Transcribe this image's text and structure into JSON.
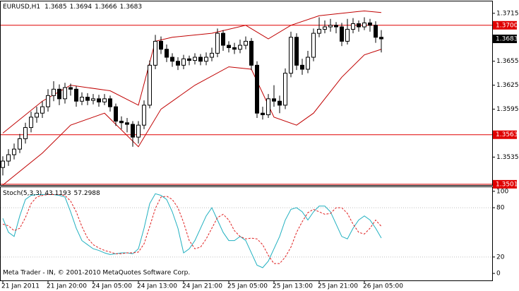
{
  "chart_data": [
    {
      "type": "candlestick",
      "title": "EURUSD,H1",
      "categories": [
        "21 Jan 2011",
        null,
        null,
        null,
        null,
        null,
        null,
        null,
        "21 Jan 20:00",
        null,
        null,
        null,
        null,
        null,
        null,
        null,
        "24 Jan 05:00",
        null,
        null,
        null,
        null,
        null,
        null,
        null,
        "24 Jan 13:00",
        null,
        null,
        null,
        null,
        null,
        null,
        null,
        "24 Jan 21:00",
        null,
        null,
        null,
        null,
        null,
        null,
        null,
        "25 Jan 05:00",
        null,
        null,
        null,
        null,
        null,
        null,
        null,
        "25 Jan 13:00",
        null,
        null,
        null,
        null,
        null,
        null,
        null,
        "25 Jan 21:00",
        null,
        null,
        null,
        null,
        null,
        null,
        null,
        "26 Jan 05:00",
        null,
        null,
        null
      ],
      "open": [
        1.3522,
        1.353,
        1.3538,
        1.3545,
        1.3558,
        1.3572,
        1.3585,
        1.359,
        1.3598,
        1.3612,
        1.362,
        1.3608,
        1.3622,
        1.362,
        1.3605,
        1.361,
        1.3606,
        1.3608,
        1.3604,
        1.3608,
        1.3598,
        1.358,
        1.3578,
        1.3576,
        1.356,
        1.3575,
        1.36,
        1.365,
        1.368,
        1.367,
        1.366,
        1.3655,
        1.365,
        1.3658,
        1.3656,
        1.366,
        1.3655,
        1.366,
        1.3665,
        1.369,
        1.3675,
        1.3672,
        1.367,
        1.3675,
        1.368,
        1.365,
        1.359,
        1.3588,
        1.3608,
        1.3605,
        1.36,
        1.364,
        1.3685,
        1.365,
        1.3645,
        1.366,
        1.369,
        1.3695,
        1.3698,
        1.37,
        1.3698,
        1.368,
        1.3695,
        1.3702,
        1.3698,
        1.3703,
        1.37,
        1.3685
      ],
      "high": [
        1.3536,
        1.3545,
        1.3552,
        1.3564,
        1.3578,
        1.3592,
        1.3598,
        1.3605,
        1.362,
        1.363,
        1.3626,
        1.3628,
        1.3627,
        1.3624,
        1.3616,
        1.3615,
        1.3614,
        1.3613,
        1.3614,
        1.3612,
        1.3602,
        1.3586,
        1.3584,
        1.358,
        1.358,
        1.3606,
        1.3656,
        1.3688,
        1.3686,
        1.3676,
        1.3665,
        1.366,
        1.3663,
        1.3662,
        1.3665,
        1.3664,
        1.3666,
        1.3672,
        1.3696,
        1.3694,
        1.368,
        1.3678,
        1.3682,
        1.3686,
        1.3684,
        1.3655,
        1.3598,
        1.3614,
        1.3625,
        1.3612,
        1.3646,
        1.3692,
        1.369,
        1.3658,
        1.3668,
        1.3696,
        1.371,
        1.3706,
        1.3708,
        1.3704,
        1.3703,
        1.3708,
        1.3709,
        1.3706,
        1.371,
        1.3708,
        1.3705,
        1.3694
      ],
      "low": [
        1.3512,
        1.3524,
        1.3532,
        1.354,
        1.3552,
        1.3566,
        1.3578,
        1.3584,
        1.3592,
        1.3605,
        1.36,
        1.3602,
        1.3612,
        1.3598,
        1.36,
        1.36,
        1.3601,
        1.3598,
        1.36,
        1.3592,
        1.3574,
        1.357,
        1.3566,
        1.3548,
        1.3552,
        1.357,
        1.3596,
        1.3645,
        1.3664,
        1.3654,
        1.3648,
        1.3644,
        1.3645,
        1.365,
        1.3651,
        1.365,
        1.365,
        1.3655,
        1.366,
        1.3668,
        1.3666,
        1.3664,
        1.3665,
        1.367,
        1.3644,
        1.3584,
        1.3582,
        1.3584,
        1.3598,
        1.359,
        1.3595,
        1.3635,
        1.3644,
        1.3638,
        1.364,
        1.3655,
        1.3685,
        1.369,
        1.3692,
        1.369,
        1.3674,
        1.3676,
        1.369,
        1.3692,
        1.3694,
        1.3692,
        1.3678,
        1.3666
      ],
      "close": [
        1.353,
        1.3538,
        1.3545,
        1.3558,
        1.3572,
        1.3585,
        1.359,
        1.3598,
        1.3612,
        1.362,
        1.3608,
        1.3622,
        1.362,
        1.3605,
        1.361,
        1.3606,
        1.3608,
        1.3604,
        1.3608,
        1.3598,
        1.358,
        1.3578,
        1.3576,
        1.356,
        1.3575,
        1.36,
        1.365,
        1.368,
        1.367,
        1.366,
        1.3655,
        1.365,
        1.3658,
        1.3656,
        1.366,
        1.3655,
        1.366,
        1.3665,
        1.369,
        1.3675,
        1.3672,
        1.367,
        1.3675,
        1.368,
        1.365,
        1.359,
        1.3588,
        1.3608,
        1.3605,
        1.36,
        1.364,
        1.3685,
        1.365,
        1.3645,
        1.366,
        1.369,
        1.3695,
        1.3698,
        1.37,
        1.3698,
        1.368,
        1.3695,
        1.3702,
        1.3698,
        1.3703,
        1.37,
        1.3685,
        1.3683
      ],
      "bands": [
        {
          "color": "#c00000",
          "x": [
            0,
            7,
            12,
            19,
            24,
            27,
            30,
            37,
            43,
            47,
            51,
            56,
            64,
            67
          ],
          "values": [
            1.3565,
            1.3605,
            1.3625,
            1.3618,
            1.36,
            1.368,
            1.3685,
            1.369,
            1.37,
            1.3683,
            1.37,
            1.3712,
            1.3718,
            1.3716
          ]
        },
        {
          "color": "#c00000",
          "x": [
            0,
            7,
            12,
            18,
            24,
            28,
            34,
            40,
            44,
            48,
            52,
            55,
            60,
            64,
            67
          ],
          "values": [
            1.35,
            1.354,
            1.3575,
            1.359,
            1.3548,
            1.3595,
            1.3625,
            1.3648,
            1.3645,
            1.3585,
            1.3575,
            1.359,
            1.3635,
            1.3663,
            1.367
          ]
        }
      ],
      "levels": [
        {
          "value": 1.37,
          "label": "1.3700"
        },
        1.3563,
        1.3501
      ],
      "level_color": "#e00000",
      "bid": 1.3683,
      "ylim": [
        1.35,
        1.3729
      ],
      "yticks": [
        1.3715,
        1.3655,
        1.3625,
        1.3595,
        1.3535
      ]
    },
    {
      "type": "stochastic",
      "title": "Stoch(5,3,3)",
      "footer": "Meta Trader - IN, © 2001-2010 MetaQuotes Software Corp.",
      "series": [
        {
          "color": "#20b0c0",
          "values": [
            67,
            50,
            45,
            70,
            90,
            95,
            96,
            96,
            96,
            96,
            95,
            93,
            75,
            55,
            40,
            35,
            30,
            28,
            25,
            23,
            24,
            25,
            25,
            24,
            30,
            55,
            85,
            97,
            95,
            90,
            75,
            55,
            25,
            30,
            40,
            55,
            70,
            80,
            65,
            50,
            40,
            40,
            45,
            40,
            25,
            10,
            7,
            15,
            30,
            45,
            65,
            78,
            80,
            75,
            65,
            75,
            82,
            82,
            75,
            60,
            45,
            42,
            55,
            65,
            70,
            65,
            55,
            43.1193
          ]
        },
        {
          "color": "#e02020",
          "dashed": true,
          "values": [
            60,
            58,
            52,
            55,
            68,
            85,
            93,
            95,
            96,
            96,
            96,
            95,
            88,
            75,
            57,
            43,
            35,
            31,
            28,
            26,
            24,
            24,
            25,
            25,
            26,
            36,
            57,
            79,
            93,
            94,
            90,
            80,
            62,
            40,
            30,
            32,
            42,
            55,
            68,
            72,
            65,
            52,
            45,
            42,
            43,
            42,
            35,
            22,
            12,
            12,
            20,
            32,
            50,
            63,
            74,
            78,
            75,
            72,
            73,
            80,
            80,
            73,
            60,
            50,
            48,
            55,
            65,
            57.2988
          ]
        }
      ],
      "ylim": [
        -8.5,
        105
      ],
      "yticks": [
        100,
        80,
        20,
        0
      ]
    }
  ]
}
